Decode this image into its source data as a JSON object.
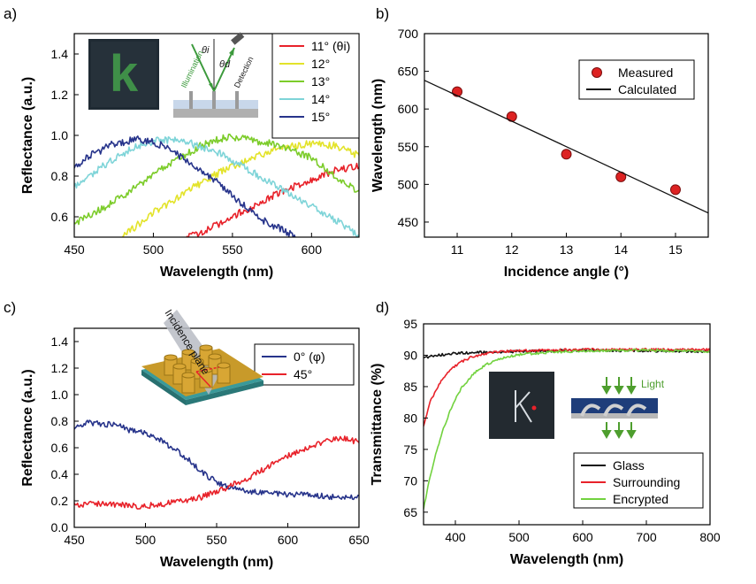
{
  "panel_labels": {
    "a": "a)",
    "b": "b)",
    "c": "c)",
    "d": "d)"
  },
  "insets": {
    "a_letter": "k",
    "a_theta_i": "θi",
    "a_theta_d": "θd",
    "a_illumination": "Illumination",
    "a_detection": "Detection",
    "c_plane": "Incidence plane",
    "d_light": "Light"
  },
  "colors": {
    "red": "#e8222a",
    "yellow": "#e3e32a",
    "green": "#7ccc2a",
    "cyan": "#7ed4d8",
    "blue": "#27348b",
    "black": "#111111",
    "green_d": "#72d23f",
    "marker_red": "#dd2222"
  },
  "chart_data": [
    {
      "type": "line",
      "panel": "a",
      "xlabel": "Wavelength (nm)",
      "ylabel": "Reflectance (a.u.)",
      "xlim": [
        450,
        630
      ],
      "ylim": [
        0.5,
        1.5
      ],
      "xticks": [
        450,
        500,
        550,
        600
      ],
      "yticks": [
        0.6,
        0.8,
        1.0,
        1.2,
        1.4
      ],
      "legend_position": "top-right",
      "series": [
        {
          "name": "11° (θi)",
          "color": "red",
          "x": [
            520,
            540,
            560,
            580,
            600,
            615,
            630
          ],
          "y": [
            0.49,
            0.56,
            0.64,
            0.72,
            0.78,
            0.83,
            0.85
          ]
        },
        {
          "name": "12°",
          "color": "yellow",
          "x": [
            480,
            500,
            520,
            540,
            560,
            580,
            600,
            615,
            630
          ],
          "y": [
            0.5,
            0.62,
            0.72,
            0.81,
            0.88,
            0.94,
            0.96,
            0.95,
            0.9
          ]
        },
        {
          "name": "13°",
          "color": "green",
          "x": [
            450,
            470,
            490,
            510,
            530,
            545,
            560,
            580,
            600,
            615,
            630
          ],
          "y": [
            0.57,
            0.65,
            0.75,
            0.86,
            0.95,
            0.99,
            0.98,
            0.95,
            0.89,
            0.8,
            0.72
          ]
        },
        {
          "name": "14°",
          "color": "cyan",
          "x": [
            450,
            470,
            490,
            505,
            520,
            540,
            560,
            580,
            600,
            620,
            630
          ],
          "y": [
            0.75,
            0.86,
            0.95,
            0.98,
            0.97,
            0.92,
            0.83,
            0.74,
            0.65,
            0.56,
            0.5
          ]
        },
        {
          "name": "15°",
          "color": "blue",
          "x": [
            450,
            460,
            475,
            490,
            500,
            510,
            525,
            540,
            555,
            570,
            585,
            590
          ],
          "y": [
            0.84,
            0.9,
            0.96,
            0.98,
            0.97,
            0.93,
            0.86,
            0.77,
            0.67,
            0.58,
            0.52,
            0.5
          ]
        }
      ]
    },
    {
      "type": "scatter",
      "panel": "b",
      "xlabel": "Incidence angle (°)",
      "ylabel": "Wavelength (nm)",
      "xlim": [
        10.4,
        15.6
      ],
      "ylim": [
        430,
        700
      ],
      "xticks": [
        11,
        12,
        13,
        14,
        15
      ],
      "yticks": [
        450,
        500,
        550,
        600,
        650,
        700
      ],
      "legend_position": "top-right",
      "series": [
        {
          "name": "Measured",
          "color": "marker_red",
          "marker": "circle",
          "x": [
            11,
            12,
            13,
            14,
            15
          ],
          "y": [
            623,
            590,
            540,
            510,
            493
          ]
        },
        {
          "name": "Calculated",
          "color": "black",
          "style": "line",
          "x": [
            10.4,
            15.6
          ],
          "y": [
            638,
            462
          ]
        }
      ]
    },
    {
      "type": "line",
      "panel": "c",
      "xlabel": "Wavelength (nm)",
      "ylabel": "Reflectance (a.u.)",
      "xlim": [
        450,
        650
      ],
      "ylim": [
        0.0,
        1.5
      ],
      "xticks": [
        450,
        500,
        550,
        600,
        650
      ],
      "yticks": [
        0.0,
        0.2,
        0.4,
        0.6,
        0.8,
        1.0,
        1.2,
        1.4
      ],
      "legend_position": "top-right",
      "series": [
        {
          "name": "0° (φ)",
          "color": "blue",
          "x": [
            450,
            460,
            470,
            480,
            490,
            500,
            510,
            520,
            530,
            540,
            550,
            560,
            575,
            590,
            605,
            620,
            635,
            650
          ],
          "y": [
            0.76,
            0.79,
            0.78,
            0.77,
            0.73,
            0.71,
            0.66,
            0.59,
            0.51,
            0.41,
            0.34,
            0.3,
            0.27,
            0.25,
            0.25,
            0.24,
            0.23,
            0.22
          ]
        },
        {
          "name": "45°",
          "color": "red",
          "x": [
            450,
            465,
            480,
            495,
            510,
            525,
            540,
            555,
            570,
            585,
            600,
            615,
            630,
            640,
            650
          ],
          "y": [
            0.17,
            0.18,
            0.17,
            0.16,
            0.17,
            0.2,
            0.23,
            0.29,
            0.36,
            0.45,
            0.54,
            0.61,
            0.66,
            0.67,
            0.64
          ]
        }
      ]
    },
    {
      "type": "line",
      "panel": "d",
      "xlabel": "Wavelength (nm)",
      "ylabel": "Transmittance (%)",
      "xlim": [
        350,
        800
      ],
      "ylim": [
        63,
        95
      ],
      "xticks": [
        400,
        500,
        600,
        700,
        800
      ],
      "yticks": [
        65,
        70,
        75,
        80,
        85,
        90,
        95
      ],
      "legend_position": "bottom-right",
      "series": [
        {
          "name": "Glass",
          "color": "black",
          "x": [
            350,
            370,
            400,
            450,
            500,
            600,
            700,
            800
          ],
          "y": [
            89.5,
            90.0,
            90.3,
            90.5,
            90.6,
            90.8,
            90.7,
            90.6
          ]
        },
        {
          "name": "Surrounding",
          "color": "red",
          "x": [
            350,
            360,
            375,
            390,
            410,
            430,
            460,
            500,
            550,
            600,
            700,
            800
          ],
          "y": [
            78.5,
            82.5,
            85.5,
            87.5,
            89.0,
            89.9,
            90.5,
            90.7,
            90.8,
            90.9,
            90.9,
            90.9
          ]
        },
        {
          "name": "Encrypted",
          "color": "green_d",
          "x": [
            350,
            360,
            370,
            380,
            395,
            410,
            430,
            450,
            475,
            500,
            550,
            600,
            700,
            800
          ],
          "y": [
            65.5,
            70.5,
            74.5,
            78.0,
            82.0,
            84.9,
            87.2,
            88.6,
            89.6,
            90.1,
            90.5,
            90.7,
            90.8,
            90.6
          ]
        }
      ]
    }
  ]
}
